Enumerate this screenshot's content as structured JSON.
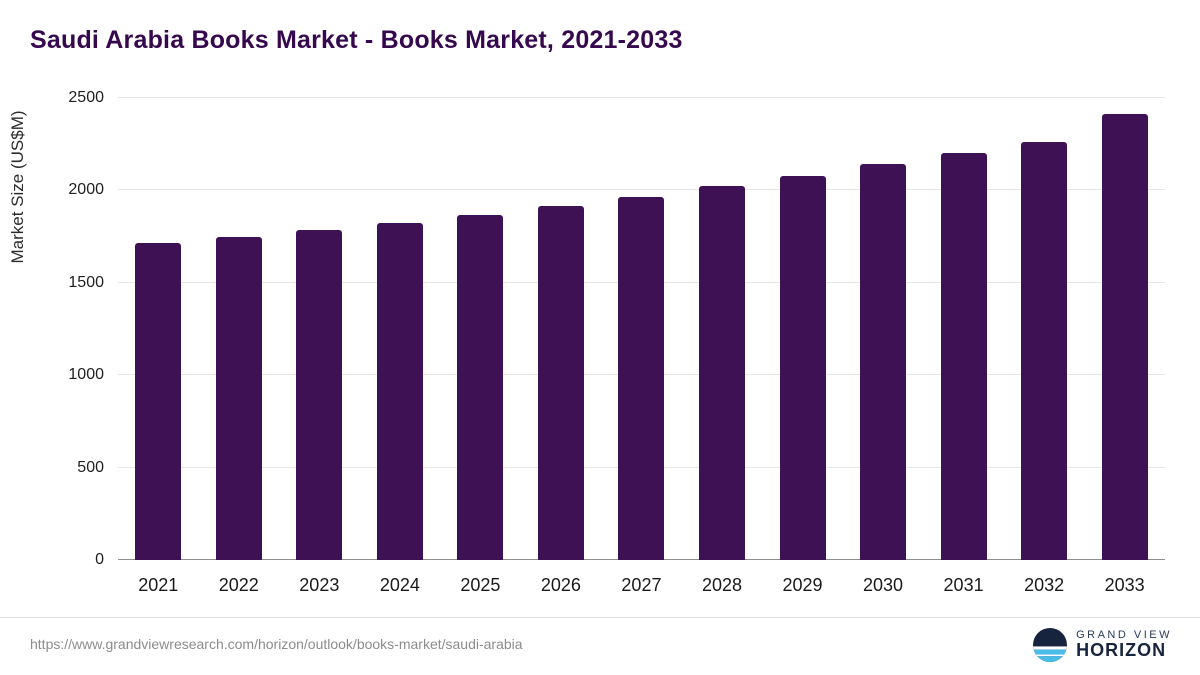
{
  "title": "Saudi Arabia Books Market - Books Market, 2021-2033",
  "footer": {
    "source_url": "https://www.grandviewresearch.com/horizon/outlook/books-market/saudi-arabia",
    "logo": {
      "line1": "GRAND VIEW",
      "line2": "HORIZON"
    }
  },
  "chart_data": {
    "type": "bar",
    "title": "Saudi Arabia Books Market - Books Market, 2021-2033",
    "categories": [
      "2021",
      "2022",
      "2023",
      "2024",
      "2025",
      "2026",
      "2027",
      "2028",
      "2029",
      "2030",
      "2031",
      "2032",
      "2033"
    ],
    "values": [
      1715,
      1750,
      1785,
      1825,
      1865,
      1915,
      1965,
      2025,
      2080,
      2145,
      2205,
      2260,
      2415
    ],
    "xlabel": "",
    "ylabel": "Market Size (US$M)",
    "ylim": [
      0,
      2500
    ],
    "yticks": [
      0,
      500,
      1000,
      1500,
      2000,
      2500
    ],
    "grid": true,
    "legend": "none",
    "bar_color": "#3e1054",
    "colors": {
      "title": "#36094e",
      "gridline": "#e7e7e7",
      "axis": "#8f8f8f"
    }
  }
}
